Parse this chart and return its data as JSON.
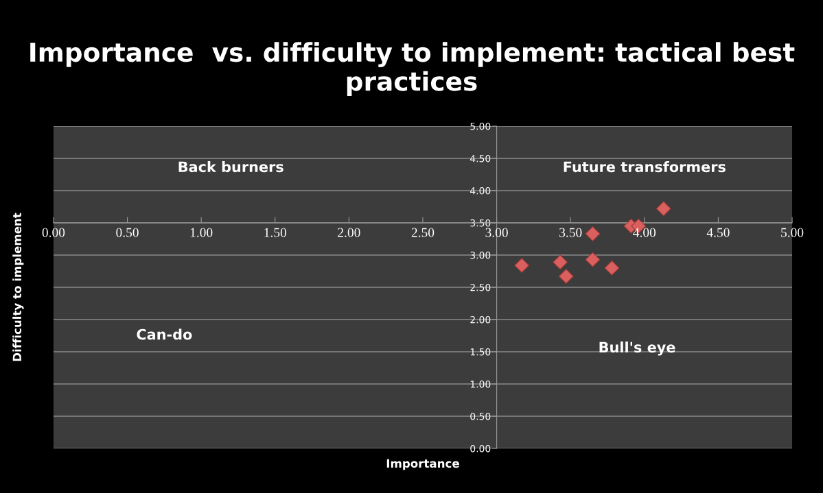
{
  "chart_data": {
    "type": "scatter",
    "title": "Importance  vs. difficulty to implement: tactical best practices",
    "xlabel": "Importance",
    "ylabel": "Difficulty to implement",
    "x": [
      4.13,
      3.91,
      3.96,
      3.65,
      3.65,
      3.17,
      3.43,
      3.47,
      3.78
    ],
    "series": [
      {
        "color": "#d9605e",
        "values": [
          3.72,
          3.45,
          3.45,
          3.33,
          2.93,
          2.84,
          2.89,
          2.67,
          2.8
        ]
      }
    ],
    "marker": "diamond",
    "grid": "y",
    "legend": false,
    "xlim": [
      0,
      5
    ],
    "ylim": [
      0,
      5
    ],
    "xticks": [
      {
        "value": 0,
        "label": "0.00"
      },
      {
        "value": 0.5,
        "label": "0.50"
      },
      {
        "value": 1,
        "label": "1.00"
      },
      {
        "value": 1.5,
        "label": "1.50"
      },
      {
        "value": 2,
        "label": "2.00"
      },
      {
        "value": 2.5,
        "label": "2.50"
      },
      {
        "value": 3,
        "label": "3.00"
      },
      {
        "value": 3.5,
        "label": "3.50"
      },
      {
        "value": 4,
        "label": "4.00"
      },
      {
        "value": 4.5,
        "label": "4.50"
      },
      {
        "value": 5,
        "label": "5.00"
      }
    ],
    "yticks": [
      {
        "value": 0,
        "label": "0.00"
      },
      {
        "value": 0.5,
        "label": "0.50"
      },
      {
        "value": 1,
        "label": "1.00"
      },
      {
        "value": 1.5,
        "label": "1.50"
      },
      {
        "value": 2,
        "label": "2.00"
      },
      {
        "value": 2.5,
        "label": "2.50"
      },
      {
        "value": 3,
        "label": "3.00"
      },
      {
        "value": 3.5,
        "label": "3.50"
      },
      {
        "value": 4,
        "label": "4.00"
      },
      {
        "value": 4.5,
        "label": "4.50"
      },
      {
        "value": 5,
        "label": "5.00"
      }
    ],
    "annotations": [
      "Back burners",
      "Future transformers",
      "Can-do",
      "Bull's eye"
    ]
  }
}
